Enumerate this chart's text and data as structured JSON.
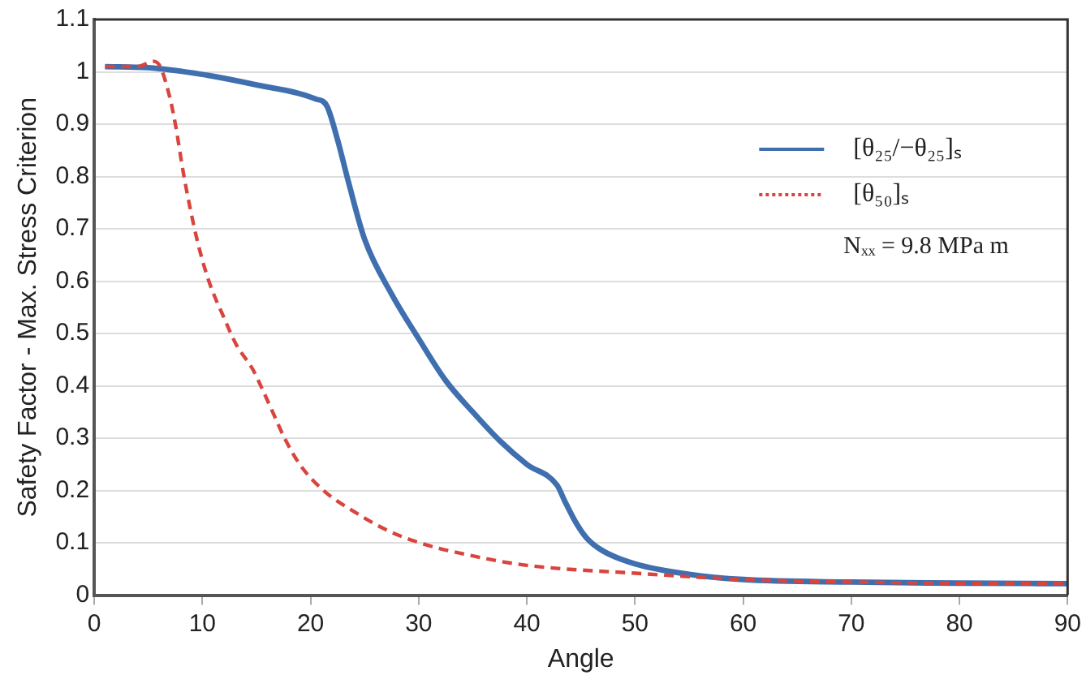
{
  "chart_data": {
    "type": "line",
    "xlabel": "Angle",
    "ylabel": "Safety Factor - Max. Stress Criterion",
    "xlim": [
      0,
      90
    ],
    "xticks": [
      0,
      10,
      20,
      30,
      40,
      50,
      60,
      70,
      80,
      90
    ],
    "ylim": [
      0,
      1.1
    ],
    "yticks": [
      0,
      0.1,
      0.2,
      0.3,
      0.4,
      0.5,
      0.6,
      0.7,
      0.8,
      0.9,
      1,
      1.1
    ],
    "grid": "y",
    "legend": "right",
    "marker": "none",
    "annotations": [
      "Nₓₓ = 9.8 MPa m"
    ],
    "series": [
      {
        "name": "[θ₂₅/−θ₂₅]ₛ",
        "color": "#3f6faf",
        "line_style": "solid",
        "x": [
          1,
          5,
          10,
          15,
          20.5,
          21.5,
          22.5,
          23.5,
          25,
          27.5,
          30,
          32.5,
          35,
          37.5,
          40,
          42.8,
          43.5,
          44.5,
          45.5,
          47,
          50,
          55,
          60,
          70,
          80,
          90
        ],
        "values": [
          1.01,
          1.008,
          0.995,
          0.975,
          0.948,
          0.935,
          0.87,
          0.79,
          0.68,
          0.575,
          0.49,
          0.41,
          0.35,
          0.295,
          0.25,
          0.21,
          0.18,
          0.14,
          0.11,
          0.085,
          0.06,
          0.04,
          0.03,
          0.025,
          0.023,
          0.022
        ]
      },
      {
        "name": "[θ₅₀]ₛ",
        "color": "#d9453e",
        "line_style": "dashed",
        "x": [
          1,
          4,
          5.5,
          6.1,
          7,
          7.5,
          8.3,
          9.5,
          10.6,
          12,
          13.1,
          14.7,
          15.4,
          16.5,
          17.6,
          19,
          21.2,
          24,
          27,
          30.1,
          35,
          40,
          50,
          60,
          70,
          80,
          90
        ],
        "values": [
          1.01,
          1.01,
          1.02,
          1.01,
          0.95,
          0.9,
          0.8,
          0.68,
          0.6,
          0.53,
          0.48,
          0.43,
          0.4,
          0.35,
          0.3,
          0.25,
          0.2,
          0.16,
          0.125,
          0.1,
          0.075,
          0.057,
          0.042,
          0.03,
          0.025,
          0.023,
          0.022
        ]
      }
    ]
  }
}
